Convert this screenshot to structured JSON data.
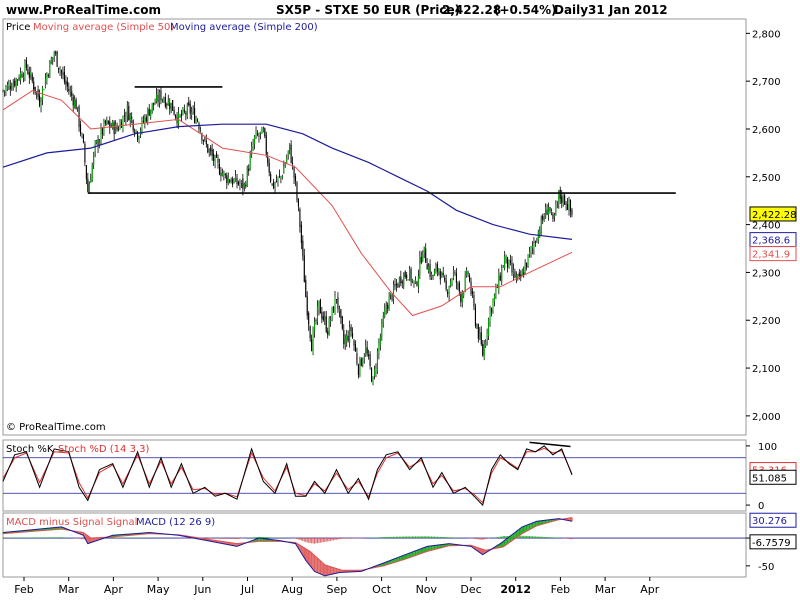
{
  "header": {
    "site": "www.ProRealTime.com",
    "instrument": "SX5P - STXE 50 EUR (Price)",
    "last": "2,422.28",
    "change": "(+0.54%)",
    "period": "Daily",
    "date": "31 Jan 2012"
  },
  "watermark": "© ProRealTime.com",
  "colors": {
    "price": "#000000",
    "ma50": "#e05050",
    "ma200": "#1c1c9c",
    "bull": "#00a000",
    "bear": "#000000",
    "stochK": "#000000",
    "stochD": "#e03030",
    "macd": "#1c1c9c",
    "signal": "#e05050",
    "macd_pos": "#22aa22",
    "macd_neg": "#e06060"
  },
  "legends": {
    "price": {
      "label": "Price",
      "ma50": "Moving average (Simple 50)",
      "ma200": "Moving average (Simple 200)"
    },
    "stoch": {
      "k": "Stoch %K",
      "d": "Stoch %D (14 3 3)"
    },
    "macd": {
      "hist": "MACD minus Signal Signal",
      "macd": "MACD (12 26 9)"
    }
  },
  "chart_data": [
    {
      "type": "candlestick",
      "panel": "price",
      "ylim": [
        1960,
        2830
      ],
      "y_ticks": [
        "2,800",
        "2,700",
        "2,600",
        "2,500",
        "2,400",
        "2,300",
        "2,200",
        "2,100",
        "2,000"
      ],
      "tick_values": [
        2800,
        2700,
        2600,
        2500,
        2400,
        2300,
        2200,
        2100,
        2000
      ],
      "x_months": [
        "Feb",
        "Mar",
        "Apr",
        "May",
        "Jun",
        "Jul",
        "Aug",
        "Sep",
        "Oct",
        "Nov",
        "Dec",
        "2012",
        "Feb",
        "Mar",
        "Apr"
      ],
      "badges": [
        {
          "label": "2,422.28",
          "value": 2422.28,
          "style": "last"
        },
        {
          "label": "2,368.6",
          "value": 2368.6,
          "style": "ma200"
        },
        {
          "label": "2,341.9",
          "value": 2341.9,
          "style": "ma50"
        }
      ],
      "close_path": [
        [
          0,
          2680
        ],
        [
          8,
          2700
        ],
        [
          16,
          2730
        ],
        [
          25,
          2660
        ],
        [
          30,
          2715
        ],
        [
          35,
          2760
        ],
        [
          42,
          2700
        ],
        [
          50,
          2650
        ],
        [
          55,
          2560
        ],
        [
          58,
          2470
        ],
        [
          63,
          2560
        ],
        [
          70,
          2610
        ],
        [
          78,
          2600
        ],
        [
          85,
          2640
        ],
        [
          92,
          2590
        ],
        [
          100,
          2640
        ],
        [
          108,
          2670
        ],
        [
          115,
          2650
        ],
        [
          120,
          2620
        ],
        [
          127,
          2640
        ],
        [
          133,
          2620
        ],
        [
          138,
          2570
        ],
        [
          145,
          2530
        ],
        [
          152,
          2500
        ],
        [
          158,
          2490
        ],
        [
          165,
          2480
        ],
        [
          172,
          2580
        ],
        [
          178,
          2590
        ],
        [
          184,
          2480
        ],
        [
          190,
          2500
        ],
        [
          196,
          2560
        ],
        [
          200,
          2480
        ],
        [
          203,
          2400
        ],
        [
          207,
          2250
        ],
        [
          211,
          2150
        ],
        [
          216,
          2230
        ],
        [
          222,
          2180
        ],
        [
          228,
          2250
        ],
        [
          233,
          2150
        ],
        [
          238,
          2180
        ],
        [
          243,
          2100
        ],
        [
          248,
          2140
        ],
        [
          253,
          2070
        ],
        [
          257,
          2150
        ],
        [
          262,
          2230
        ],
        [
          267,
          2260
        ],
        [
          272,
          2290
        ],
        [
          277,
          2300
        ],
        [
          282,
          2270
        ],
        [
          287,
          2350
        ],
        [
          293,
          2290
        ],
        [
          298,
          2310
        ],
        [
          303,
          2260
        ],
        [
          308,
          2300
        ],
        [
          313,
          2250
        ],
        [
          318,
          2300
        ],
        [
          323,
          2200
        ],
        [
          328,
          2130
        ],
        [
          333,
          2220
        ],
        [
          338,
          2270
        ],
        [
          343,
          2330
        ],
        [
          348,
          2300
        ],
        [
          353,
          2280
        ],
        [
          358,
          2320
        ],
        [
          364,
          2370
        ],
        [
          369,
          2410
        ],
        [
          373,
          2440
        ],
        [
          376,
          2400
        ],
        [
          380,
          2460
        ],
        [
          385,
          2450
        ],
        [
          389,
          2420
        ]
      ],
      "ma50": [
        [
          0,
          2640
        ],
        [
          20,
          2680
        ],
        [
          40,
          2660
        ],
        [
          60,
          2600
        ],
        [
          90,
          2610
        ],
        [
          120,
          2620
        ],
        [
          150,
          2560
        ],
        [
          180,
          2545
        ],
        [
          200,
          2520
        ],
        [
          225,
          2440
        ],
        [
          245,
          2340
        ],
        [
          265,
          2260
        ],
        [
          280,
          2210
        ],
        [
          300,
          2230
        ],
        [
          320,
          2270
        ],
        [
          340,
          2270
        ],
        [
          360,
          2300
        ],
        [
          389,
          2342
        ]
      ],
      "ma200": [
        [
          0,
          2520
        ],
        [
          30,
          2550
        ],
        [
          60,
          2560
        ],
        [
          90,
          2590
        ],
        [
          120,
          2605
        ],
        [
          150,
          2610
        ],
        [
          180,
          2610
        ],
        [
          205,
          2590
        ],
        [
          225,
          2560
        ],
        [
          250,
          2530
        ],
        [
          270,
          2500
        ],
        [
          290,
          2470
        ],
        [
          310,
          2430
        ],
        [
          335,
          2400
        ],
        [
          360,
          2380
        ],
        [
          389,
          2369
        ]
      ],
      "annotations": [
        {
          "kind": "support-line",
          "x": [
            58,
            460
          ],
          "value": 2466
        },
        {
          "kind": "resistance-line",
          "x": [
            90,
            150
          ],
          "value": 2688
        }
      ]
    },
    {
      "type": "line",
      "panel": "stochastic",
      "ylim": [
        -10,
        110
      ],
      "y_ticks": [
        "100",
        "0"
      ],
      "tick_values": [
        100,
        0
      ],
      "bands": [
        80,
        20
      ],
      "labels": [
        {
          "label": "53.316",
          "value": 60,
          "color": "#e03030"
        },
        {
          "label": "51.085",
          "value": 47,
          "color": "#000000"
        }
      ],
      "k": [
        [
          0,
          40
        ],
        [
          8,
          85
        ],
        [
          16,
          90
        ],
        [
          25,
          30
        ],
        [
          35,
          95
        ],
        [
          45,
          90
        ],
        [
          52,
          30
        ],
        [
          58,
          8
        ],
        [
          66,
          60
        ],
        [
          75,
          70
        ],
        [
          82,
          30
        ],
        [
          92,
          90
        ],
        [
          100,
          30
        ],
        [
          108,
          80
        ],
        [
          115,
          30
        ],
        [
          122,
          70
        ],
        [
          130,
          20
        ],
        [
          138,
          30
        ],
        [
          145,
          15
        ],
        [
          152,
          20
        ],
        [
          160,
          10
        ],
        [
          170,
          95
        ],
        [
          178,
          40
        ],
        [
          186,
          20
        ],
        [
          194,
          70
        ],
        [
          200,
          15
        ],
        [
          207,
          15
        ],
        [
          213,
          40
        ],
        [
          220,
          20
        ],
        [
          228,
          60
        ],
        [
          236,
          20
        ],
        [
          243,
          45
        ],
        [
          250,
          10
        ],
        [
          256,
          60
        ],
        [
          262,
          85
        ],
        [
          270,
          90
        ],
        [
          278,
          60
        ],
        [
          286,
          80
        ],
        [
          294,
          30
        ],
        [
          300,
          55
        ],
        [
          308,
          20
        ],
        [
          316,
          30
        ],
        [
          322,
          15
        ],
        [
          328,
          0
        ],
        [
          334,
          60
        ],
        [
          340,
          85
        ],
        [
          346,
          70
        ],
        [
          352,
          60
        ],
        [
          358,
          95
        ],
        [
          364,
          90
        ],
        [
          370,
          100
        ],
        [
          376,
          85
        ],
        [
          382,
          95
        ],
        [
          389,
          51
        ]
      ],
      "d": [
        [
          0,
          45
        ],
        [
          8,
          80
        ],
        [
          16,
          88
        ],
        [
          25,
          38
        ],
        [
          35,
          90
        ],
        [
          45,
          88
        ],
        [
          52,
          38
        ],
        [
          58,
          12
        ],
        [
          66,
          55
        ],
        [
          75,
          68
        ],
        [
          82,
          36
        ],
        [
          92,
          85
        ],
        [
          100,
          36
        ],
        [
          108,
          74
        ],
        [
          115,
          36
        ],
        [
          122,
          64
        ],
        [
          130,
          26
        ],
        [
          138,
          28
        ],
        [
          145,
          18
        ],
        [
          152,
          20
        ],
        [
          160,
          14
        ],
        [
          170,
          88
        ],
        [
          178,
          46
        ],
        [
          186,
          24
        ],
        [
          194,
          64
        ],
        [
          200,
          20
        ],
        [
          207,
          16
        ],
        [
          213,
          36
        ],
        [
          220,
          24
        ],
        [
          228,
          54
        ],
        [
          236,
          26
        ],
        [
          243,
          40
        ],
        [
          250,
          14
        ],
        [
          256,
          54
        ],
        [
          262,
          80
        ],
        [
          270,
          88
        ],
        [
          278,
          64
        ],
        [
          286,
          76
        ],
        [
          294,
          36
        ],
        [
          300,
          50
        ],
        [
          308,
          24
        ],
        [
          316,
          28
        ],
        [
          322,
          18
        ],
        [
          328,
          4
        ],
        [
          334,
          54
        ],
        [
          340,
          80
        ],
        [
          346,
          72
        ],
        [
          352,
          62
        ],
        [
          358,
          90
        ],
        [
          364,
          90
        ],
        [
          370,
          96
        ],
        [
          376,
          88
        ],
        [
          382,
          92
        ],
        [
          389,
          53
        ]
      ],
      "annotations": [
        {
          "kind": "divergence-line",
          "x": [
            360,
            388
          ],
          "value": [
            106,
            99
          ]
        }
      ]
    },
    {
      "type": "line",
      "panel": "macd",
      "ylim": [
        -70,
        45
      ],
      "y_ticks": [
        "0",
        "-50"
      ],
      "tick_values": [
        0,
        -50
      ],
      "labels": [
        {
          "label": "30.276",
          "value": 32,
          "color": "#1c1c9c"
        },
        {
          "label": "-6.7579",
          "value": -6.8,
          "color": "#000000"
        }
      ],
      "macd": [
        [
          0,
          10
        ],
        [
          20,
          15
        ],
        [
          40,
          20
        ],
        [
          55,
          5
        ],
        [
          58,
          -10
        ],
        [
          75,
          5
        ],
        [
          100,
          10
        ],
        [
          120,
          5
        ],
        [
          140,
          -5
        ],
        [
          160,
          -15
        ],
        [
          175,
          0
        ],
        [
          190,
          -5
        ],
        [
          200,
          -10
        ],
        [
          207,
          -40
        ],
        [
          213,
          -60
        ],
        [
          220,
          -68
        ],
        [
          230,
          -62
        ],
        [
          245,
          -60
        ],
        [
          260,
          -45
        ],
        [
          275,
          -30
        ],
        [
          290,
          -15
        ],
        [
          305,
          -10
        ],
        [
          320,
          -15
        ],
        [
          328,
          -30
        ],
        [
          340,
          -10
        ],
        [
          355,
          20
        ],
        [
          365,
          30
        ],
        [
          380,
          35
        ],
        [
          389,
          30
        ]
      ],
      "signal": [
        [
          0,
          8
        ],
        [
          20,
          12
        ],
        [
          40,
          16
        ],
        [
          55,
          10
        ],
        [
          60,
          0
        ],
        [
          75,
          2
        ],
        [
          100,
          8
        ],
        [
          120,
          6
        ],
        [
          140,
          -2
        ],
        [
          160,
          -10
        ],
        [
          175,
          -6
        ],
        [
          190,
          -6
        ],
        [
          200,
          -8
        ],
        [
          210,
          -24
        ],
        [
          220,
          -48
        ],
        [
          232,
          -58
        ],
        [
          245,
          -58
        ],
        [
          260,
          -50
        ],
        [
          275,
          -38
        ],
        [
          290,
          -24
        ],
        [
          305,
          -14
        ],
        [
          320,
          -13
        ],
        [
          330,
          -22
        ],
        [
          342,
          -16
        ],
        [
          355,
          8
        ],
        [
          365,
          22
        ],
        [
          380,
          33
        ],
        [
          389,
          37
        ]
      ]
    }
  ]
}
